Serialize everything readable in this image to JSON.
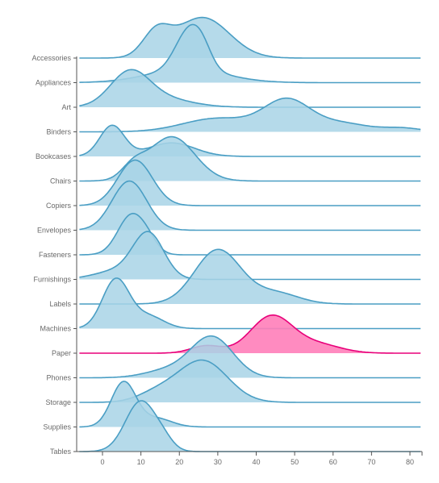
{
  "chart_data": {
    "type": "ridgeline",
    "title": "",
    "xlabel": "",
    "ylabel": "",
    "xlim": [
      -6,
      84
    ],
    "x_ticks": [
      0,
      10,
      20,
      30,
      40,
      50,
      60,
      70,
      80
    ],
    "x_tick_labels": [
      "0",
      "10",
      "20",
      "30",
      "40",
      "50",
      "60",
      "70",
      "80"
    ],
    "categories": [
      "Accessories",
      "Appliances",
      "Art",
      "Binders",
      "Bookcases",
      "Chairs",
      "Copiers",
      "Envelopes",
      "Fasteners",
      "Furnishings",
      "Labels",
      "Machines",
      "Paper",
      "Phones",
      "Storage",
      "Supplies",
      "Tables"
    ],
    "highlight": "Paper",
    "colors": {
      "fill": "#a8d4e6",
      "stroke": "#4a9ec4",
      "highlight_fill": "#ff7eb9",
      "highlight_stroke": "#e8007a",
      "axis": "#555555",
      "text": "#6a6a6a"
    },
    "series": [
      {
        "name": "Accessories",
        "peaks": [
          [
            14,
            3.5,
            0.95
          ],
          [
            26,
            7,
            1.65
          ]
        ]
      },
      {
        "name": "Appliances",
        "peaks": [
          [
            22.5,
            3.5,
            1.55
          ],
          [
            26,
            2.5,
            0.55
          ],
          [
            22,
            10,
            0.55
          ]
        ]
      },
      {
        "name": "Art",
        "peaks": [
          [
            7,
            5,
            1.25
          ],
          [
            14,
            8,
            0.4
          ]
        ]
      },
      {
        "name": "Binders",
        "peaks": [
          [
            48,
            6,
            1.25
          ],
          [
            30,
            9,
            0.55
          ],
          [
            62,
            7,
            0.35
          ],
          [
            78,
            5,
            0.15
          ]
        ]
      },
      {
        "name": "Bookcases",
        "peaks": [
          [
            2.5,
            3.2,
            1.25
          ],
          [
            18,
            6,
            0.55
          ]
        ]
      },
      {
        "name": "Chairs",
        "peaks": [
          [
            18,
            6,
            1.8
          ],
          [
            8,
            3,
            0.5
          ]
        ]
      },
      {
        "name": "Copiers",
        "peaks": [
          [
            8.5,
            4.5,
            1.85
          ]
        ]
      },
      {
        "name": "Envelopes",
        "peaks": [
          [
            7,
            4.5,
            2.0
          ]
        ]
      },
      {
        "name": "Fasteners",
        "peaks": [
          [
            7.5,
            3.5,
            1.6
          ],
          [
            12,
            2.5,
            0.35
          ]
        ]
      },
      {
        "name": "Furnishings",
        "peaks": [
          [
            12,
            4,
            1.8
          ],
          [
            4,
            6,
            0.35
          ]
        ]
      },
      {
        "name": "Labels",
        "peaks": [
          [
            30,
            6,
            2.2
          ],
          [
            45,
            6,
            0.45
          ]
        ]
      },
      {
        "name": "Machines",
        "peaks": [
          [
            3.5,
            3.5,
            2.0
          ],
          [
            12,
            4,
            0.5
          ]
        ]
      },
      {
        "name": "Paper",
        "peaks": [
          [
            44,
            5.5,
            1.5
          ],
          [
            56,
            6,
            0.35
          ],
          [
            27,
            4,
            0.3
          ]
        ]
      },
      {
        "name": "Phones",
        "peaks": [
          [
            28.5,
            5.5,
            1.65
          ],
          [
            17,
            6,
            0.3
          ]
        ]
      },
      {
        "name": "Storage",
        "peaks": [
          [
            26,
            6.5,
            1.7
          ],
          [
            14,
            5,
            0.35
          ]
        ]
      },
      {
        "name": "Supplies",
        "peaks": [
          [
            5.5,
            3.2,
            1.82
          ],
          [
            14,
            4,
            0.35
          ]
        ]
      },
      {
        "name": "Tables",
        "peaks": [
          [
            10,
            4,
            2.05
          ],
          [
            16,
            2.5,
            0.3
          ]
        ]
      }
    ]
  }
}
